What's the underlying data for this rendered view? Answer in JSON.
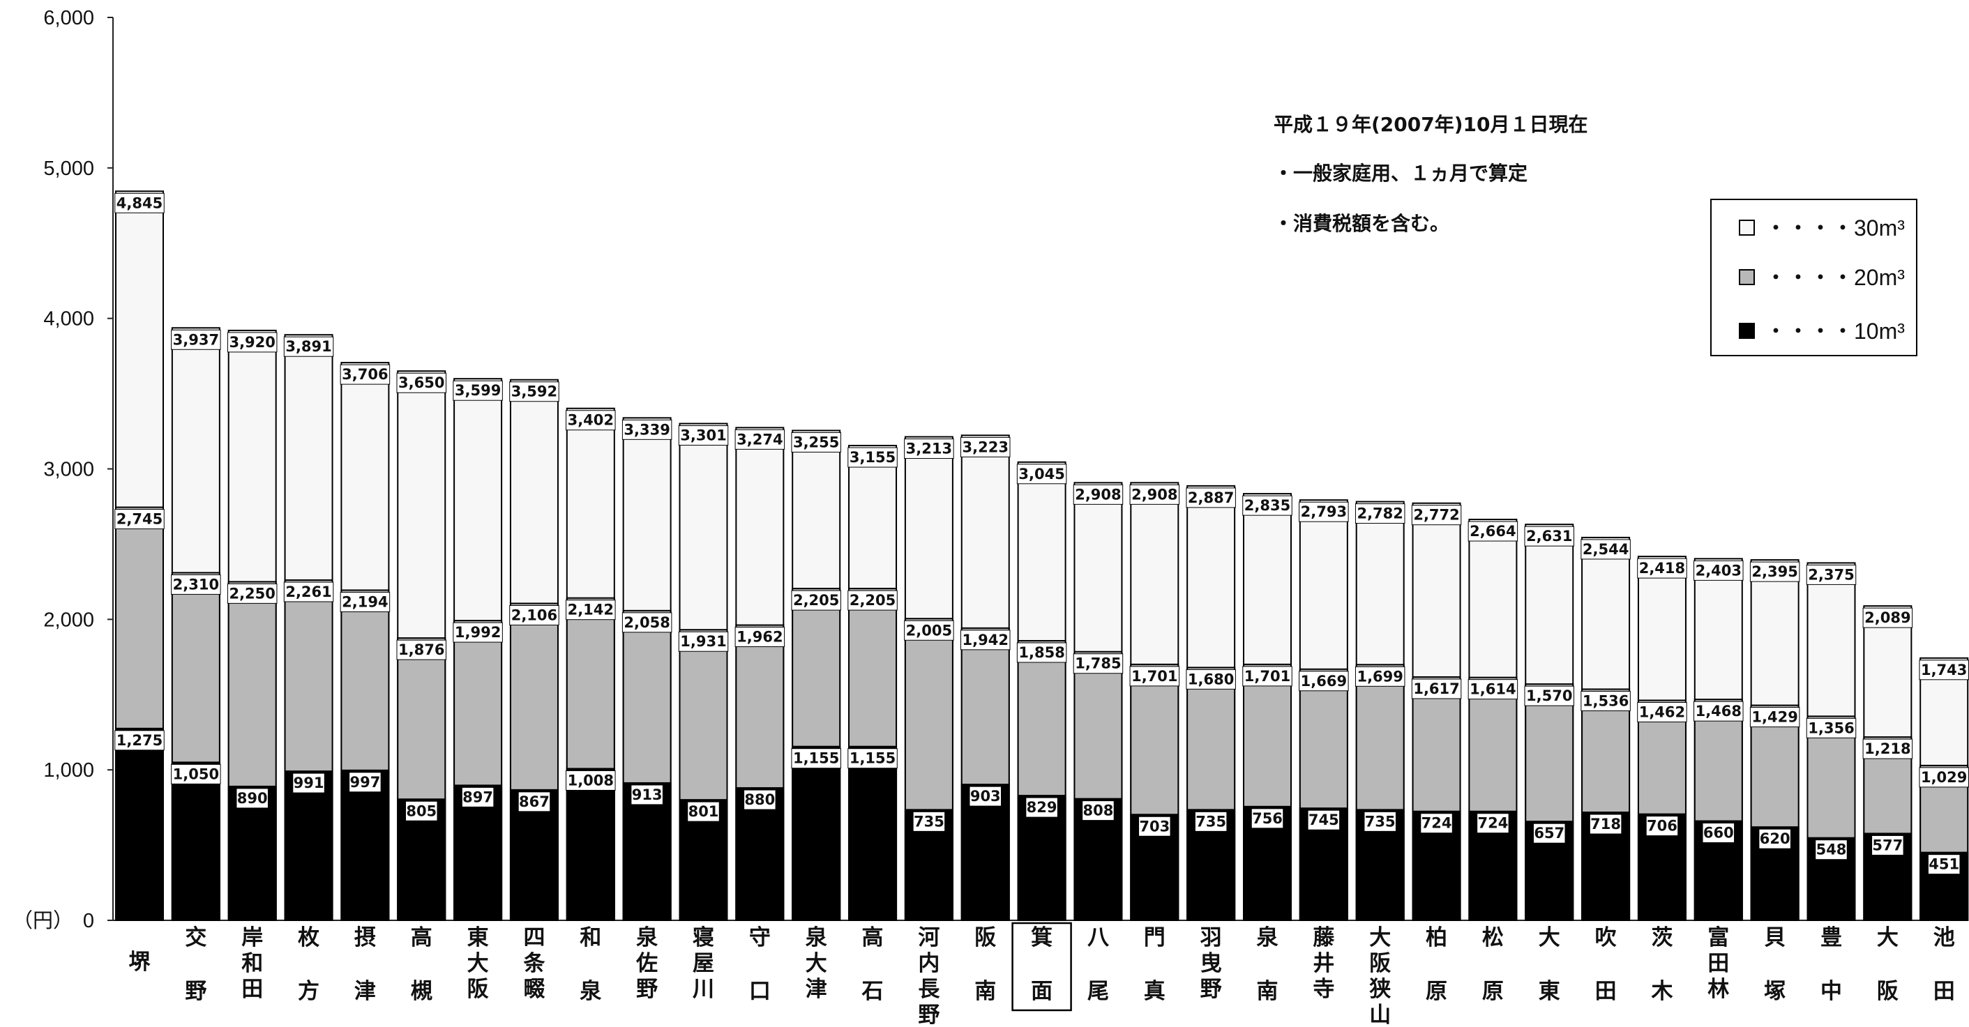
{
  "chart_data": {
    "type": "bar",
    "stacked_overlap": true,
    "y_unit_label": "（円）",
    "ylim": [
      0,
      6000
    ],
    "yticks": [
      "6,000",
      "5,000",
      "4,000",
      "3,000",
      "2,000",
      "1,000",
      "0"
    ],
    "ytick_values": [
      6000,
      5000,
      4000,
      3000,
      2000,
      1000,
      0
    ],
    "notes": [
      "平成１９年(2007年)10月１日現在",
      "・一般家庭用、１ヵ月で算定",
      "・消費税額を含む。"
    ],
    "legend": [
      {
        "name": "・・・・30m³",
        "color": "#f7f7f7"
      },
      {
        "name": "・・・・20m³",
        "color": "#b8b8b8"
      },
      {
        "name": "・・・・10m³",
        "color": "#000000"
      }
    ],
    "highlighted_category": "箕面",
    "categories": [
      "堺",
      "交野",
      "岸和田",
      "枚方",
      "摂津",
      "高槻",
      "東大阪",
      "四条畷",
      "和泉",
      "泉佐野",
      "寝屋川",
      "守口",
      "泉大津",
      "高石",
      "河内長野",
      "阪南",
      "箕面",
      "八尾",
      "門真",
      "羽曳野",
      "泉南",
      "藤井寺",
      "大阪狭山",
      "柏原",
      "松原",
      "大東",
      "吹田",
      "茨木",
      "富田林",
      "貝塚",
      "豊中",
      "大阪",
      "池田"
    ],
    "series": [
      {
        "name": "30m³",
        "color": "#f7f7f7",
        "values": [
          4845,
          3937,
          3920,
          3891,
          3706,
          3650,
          3599,
          3592,
          3402,
          3339,
          3301,
          3274,
          3255,
          3155,
          3213,
          3223,
          3045,
          2908,
          2908,
          2887,
          2835,
          2793,
          2782,
          2772,
          2664,
          2631,
          2544,
          2418,
          2403,
          2395,
          2375,
          2089,
          1743
        ],
        "labels": [
          "4,845",
          "3,937",
          "3,920",
          "3,891",
          "3,706",
          "3,650",
          "3,599",
          "3,592",
          "3,402",
          "3,339",
          "3,301",
          "3,274",
          "3,255",
          "3,155",
          "3,213",
          "3,223",
          "3,045",
          "2,908",
          "2,908",
          "2,887",
          "2,835",
          "2,793",
          "2,782",
          "2,772",
          "2,664",
          "2,631",
          "2,544",
          "2,418",
          "2,403",
          "2,395",
          "2,375",
          "2,089",
          "1,743"
        ]
      },
      {
        "name": "20m³",
        "color": "#b8b8b8",
        "values": [
          2745,
          2310,
          2250,
          2261,
          2194,
          1876,
          1992,
          2106,
          2142,
          2058,
          1931,
          1962,
          2205,
          2205,
          2005,
          1942,
          1858,
          1785,
          1701,
          1680,
          1701,
          1669,
          1699,
          1617,
          1614,
          1570,
          1536,
          1462,
          1468,
          1429,
          1356,
          1218,
          1029
        ],
        "labels": [
          "2,745",
          "2,310",
          "2,250",
          "2,261",
          "2,194",
          "1,876",
          "1,992",
          "2,106",
          "2,142",
          "2,058",
          "1,931",
          "1,962",
          "2,205",
          "2,205",
          "2,005",
          "1,942",
          "1,858",
          "1,785",
          "1,701",
          "1,680",
          "1,701",
          "1,669",
          "1,699",
          "1,617",
          "1,614",
          "1,570",
          "1,536",
          "1,462",
          "1,468",
          "1,429",
          "1,356",
          "1,218",
          "1,029"
        ]
      },
      {
        "name": "10m³",
        "color": "#000000",
        "values": [
          1275,
          1050,
          890,
          991,
          997,
          805,
          897,
          867,
          1008,
          913,
          801,
          880,
          1155,
          1155,
          735,
          903,
          829,
          808,
          703,
          735,
          756,
          745,
          735,
          724,
          724,
          657,
          718,
          706,
          660,
          620,
          548,
          577,
          451
        ],
        "labels": [
          "1,275",
          "1,050",
          "890",
          "991",
          "997",
          "805",
          "897",
          "867",
          "1,008",
          "913",
          "801",
          "880",
          "1,155",
          "1,155",
          "735",
          "903",
          "829",
          "808",
          "703",
          "735",
          "756",
          "745",
          "735",
          "724",
          "724",
          "657",
          "718",
          "706",
          "660",
          "620",
          "548",
          "577",
          "451"
        ]
      }
    ]
  }
}
